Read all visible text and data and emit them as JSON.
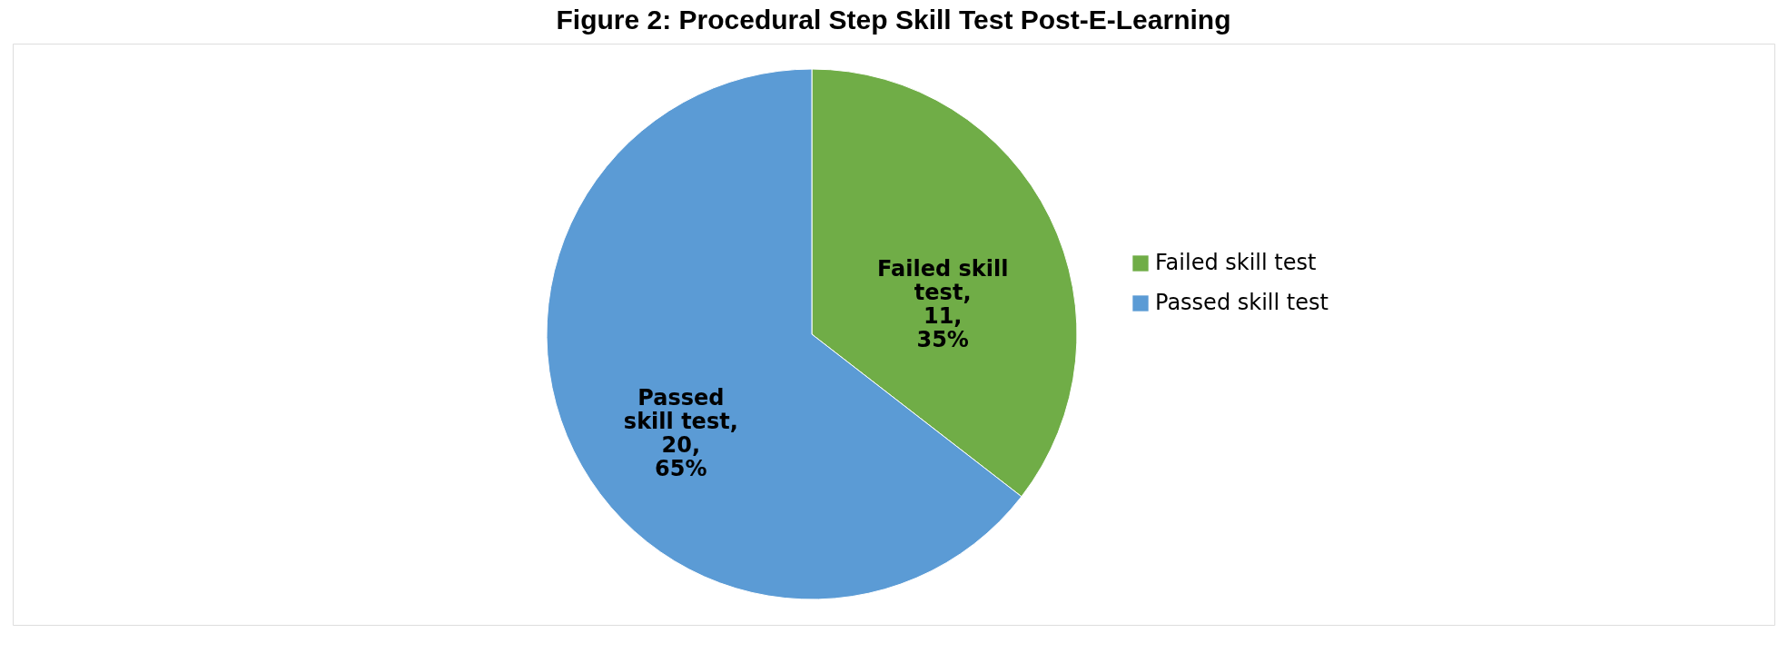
{
  "chart_data": {
    "type": "pie",
    "title": "Figure 2: Procedural Step Skill Test Post-E-Learning",
    "categories": [
      "Failed skill test",
      "Passed skill test"
    ],
    "values": [
      11,
      20
    ],
    "colors": [
      "#70ad47",
      "#5b9bd5"
    ],
    "value_labels": [
      "Failed skill\ntest,\n11,\n35%",
      "Passed\nskill test,\n20,\n65%"
    ],
    "legend": "right"
  }
}
